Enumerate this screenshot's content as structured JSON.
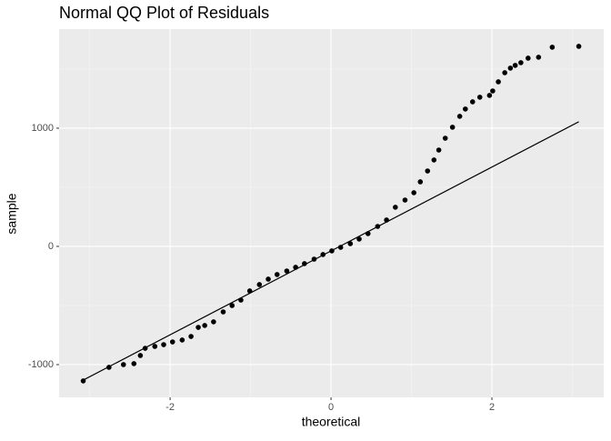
{
  "chart_data": {
    "type": "scatter",
    "title": "Normal QQ Plot of Residuals",
    "x_label": "theoretical",
    "y_label": "sample",
    "x": [
      -3.08,
      -2.76,
      -2.58,
      -2.45,
      -2.37,
      -2.31,
      -2.19,
      -2.08,
      -1.97,
      -1.85,
      -1.74,
      -1.65,
      -1.57,
      -1.46,
      -1.34,
      -1.23,
      -1.12,
      -1.01,
      -0.89,
      -0.78,
      -0.67,
      -0.55,
      -0.44,
      -0.33,
      -0.21,
      -0.1,
      0.01,
      0.12,
      0.24,
      0.35,
      0.46,
      0.58,
      0.69,
      0.8,
      0.92,
      1.03,
      1.11,
      1.2,
      1.28,
      1.34,
      1.42,
      1.51,
      1.6,
      1.67,
      1.76,
      1.85,
      1.97,
      2.01,
      2.08,
      2.16,
      2.23,
      2.29,
      2.36,
      2.45,
      2.58,
      2.75,
      3.08
    ],
    "values": [
      -1138,
      -1023,
      -1000,
      -992,
      -923,
      -862,
      -846,
      -831,
      -808,
      -792,
      -762,
      -685,
      -669,
      -638,
      -554,
      -500,
      -454,
      -377,
      -323,
      -277,
      -238,
      -208,
      -177,
      -146,
      -108,
      -69,
      -38,
      -8,
      23,
      62,
      108,
      169,
      223,
      331,
      392,
      454,
      546,
      638,
      731,
      815,
      915,
      1008,
      1100,
      1162,
      1223,
      1262,
      1277,
      1315,
      1392,
      1469,
      1508,
      1531,
      1554,
      1592,
      1600,
      1685,
      1692
    ],
    "color": "#000000",
    "reference_line": {
      "x": [
        -3.1,
        3.08
      ],
      "values": [
        -1138,
        1054
      ]
    },
    "xlim": [
      -3.38,
      3.39
    ],
    "ylim": [
      -1277,
      1838
    ],
    "xticks": [
      -2,
      0,
      2
    ],
    "yticks": [
      -1000,
      0,
      1000
    ],
    "x_minor_breaks": [
      -3,
      -1,
      1,
      3
    ],
    "y_minor_breaks": [
      -500,
      500,
      1500
    ],
    "grid": true
  }
}
